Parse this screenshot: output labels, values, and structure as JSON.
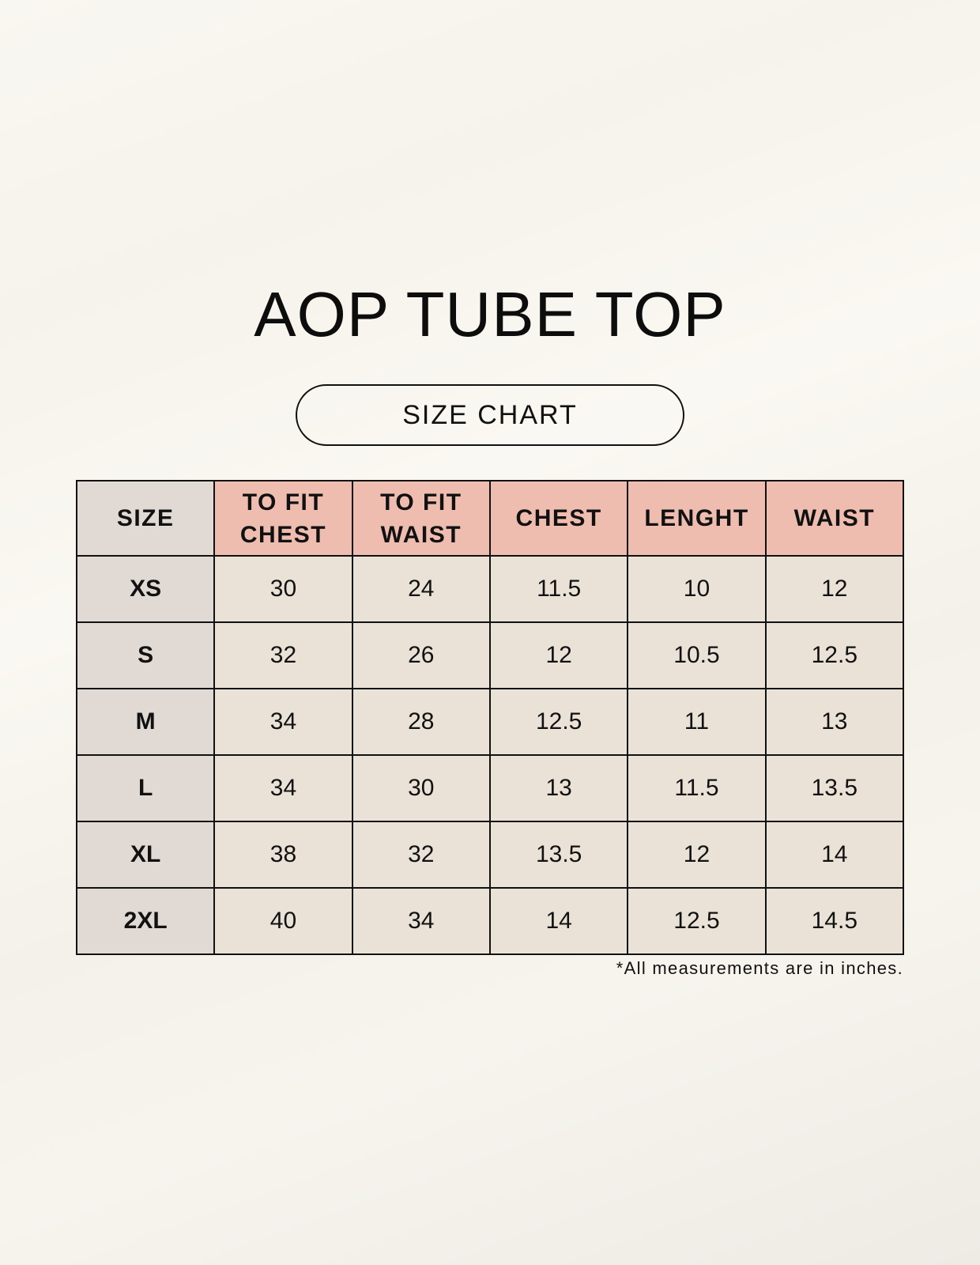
{
  "title": "AOP TUBE TOP",
  "subtitle": "SIZE CHART",
  "table": {
    "headers": [
      "SIZE",
      "TO FIT\nCHEST",
      "TO FIT\nWAIST",
      "CHEST",
      "LENGHT",
      "WAIST"
    ],
    "rows": [
      [
        "XS",
        "30",
        "24",
        "11.5",
        "10",
        "12"
      ],
      [
        "S",
        "32",
        "26",
        "12",
        "10.5",
        "12.5"
      ],
      [
        "M",
        "34",
        "28",
        "12.5",
        "11",
        "13"
      ],
      [
        "L",
        "34",
        "30",
        "13",
        "11.5",
        "13.5"
      ],
      [
        "XL",
        "38",
        "32",
        "13.5",
        "12",
        "14"
      ],
      [
        "2XL",
        "40",
        "34",
        "14",
        "12.5",
        "14.5"
      ]
    ]
  },
  "footnote": "*All measurements are in inches.",
  "colors": {
    "header_accent": "#efbdaf",
    "size_column": "#e1d9d3",
    "cell": "#eae2d7"
  }
}
